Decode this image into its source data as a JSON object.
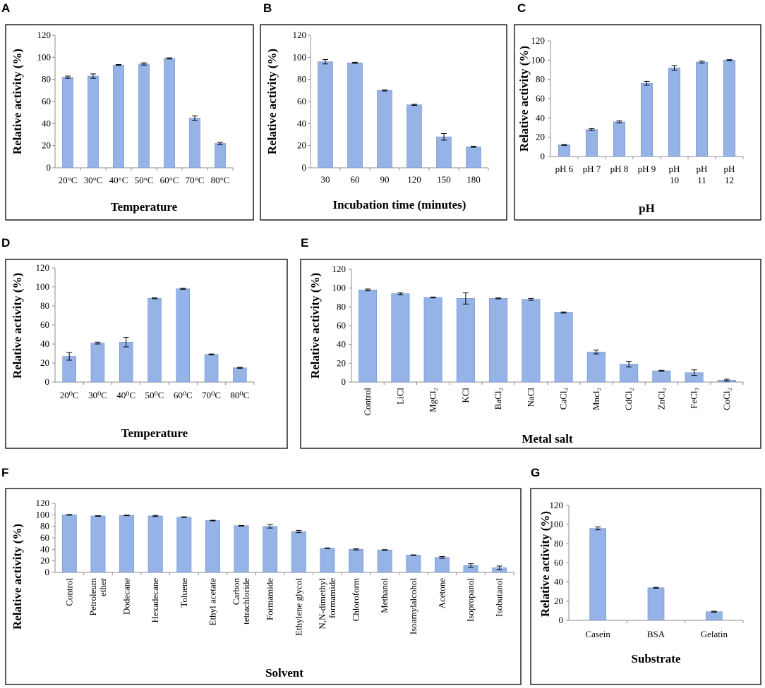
{
  "colors": {
    "bar": "#95b3e7",
    "bar_stroke": "#6f8fc9",
    "axis": "#8c8c8c",
    "error_bar": "#000000"
  },
  "chart_data": [
    {
      "id": "A",
      "panel": "A",
      "type": "bar",
      "title": "",
      "xlabel": "Temperature",
      "ylabel": "Relative activity  (%)",
      "ylim": [
        0,
        120
      ],
      "ytick_step": 20,
      "categories": [
        "20°C",
        "30°C",
        "40°C",
        "50°C",
        "60°C",
        "70°C",
        "80°C"
      ],
      "values": [
        82,
        83,
        93,
        94,
        99,
        45,
        22
      ],
      "errors": [
        1,
        2,
        0.5,
        1,
        0.5,
        2,
        1
      ]
    },
    {
      "id": "B",
      "panel": "B",
      "type": "bar",
      "title": "",
      "xlabel": "Incubation  time (minutes)",
      "ylabel": "Relative activity  (%)",
      "ylim": [
        0,
        120
      ],
      "ytick_step": 20,
      "categories": [
        "30",
        "60",
        "90",
        "120",
        "150",
        "180"
      ],
      "values": [
        96,
        95,
        70,
        57,
        28,
        19
      ],
      "errors": [
        2,
        0.5,
        0.5,
        0.5,
        3,
        0.5
      ]
    },
    {
      "id": "C",
      "panel": "C",
      "type": "bar",
      "title": "",
      "xlabel": "pH",
      "ylabel": "Relative activity  (%)",
      "ylim": [
        0,
        120
      ],
      "ytick_step": 20,
      "categories": [
        "pH 6",
        "pH 7",
        "pH 8",
        "pH 9",
        "pH 10",
        "pH 11",
        "pH 12"
      ],
      "category_lines": [
        [
          "pH 6"
        ],
        [
          "pH 7"
        ],
        [
          "pH 8"
        ],
        [
          "pH 9"
        ],
        [
          "pH",
          "10"
        ],
        [
          "pH",
          "11"
        ],
        [
          "pH",
          "12"
        ]
      ],
      "values": [
        12,
        28,
        36,
        76,
        92,
        98,
        100
      ],
      "errors": [
        0.5,
        1,
        1,
        2,
        2.5,
        1,
        0.5
      ]
    },
    {
      "id": "D",
      "panel": "D",
      "type": "bar",
      "title": "",
      "xlabel": "Temperature",
      "ylabel": "Relative activity  (%)",
      "ylim": [
        0,
        120
      ],
      "ytick_step": 20,
      "categories": [
        "20⁰C",
        "30⁰C",
        "40⁰C",
        "50⁰C",
        "60⁰C",
        "70⁰C",
        "80⁰C"
      ],
      "values": [
        27,
        41,
        42,
        88,
        98,
        29,
        15
      ],
      "errors": [
        4,
        1,
        5,
        0.5,
        0.5,
        0.5,
        0.5
      ]
    },
    {
      "id": "E",
      "panel": "E",
      "type": "bar",
      "title": "",
      "xlabel": "Metal salt",
      "ylabel": "Relative activity  (%)",
      "ylim": [
        0,
        120
      ],
      "ytick_step": 20,
      "categories": [
        "Control",
        "LiCl",
        "MgCl₂",
        "KCl",
        "BaCl₂",
        "NaCl",
        "CaCl₂",
        "Mncl₂",
        "CdCl₂",
        "ZnCl₂",
        "FeCl₃",
        "CoCl₂"
      ],
      "values": [
        98,
        94,
        90,
        89,
        89,
        88,
        74,
        32,
        19,
        12,
        10,
        2
      ],
      "errors": [
        1,
        1,
        0.5,
        6,
        0.5,
        1,
        0.5,
        2,
        3,
        0.5,
        3,
        1
      ]
    },
    {
      "id": "F",
      "panel": "F",
      "type": "bar",
      "title": "",
      "xlabel": "Solvent",
      "ylabel": "Relative activity  (%)",
      "ylim": [
        0,
        120
      ],
      "ytick_step": 20,
      "categories": [
        "Control",
        "Petroleum ether",
        "Dodecane",
        "Hexadecane",
        "Toluene",
        "Ethyl acetate",
        "Carbon tetrachloride",
        "Formamide",
        "Ethylene glycol",
        "N,N-dimethyl formamide",
        "Chloroform",
        "Methanol",
        "Isoamylalcohol",
        "Acetone",
        "Isopropanol",
        "Isobutanol"
      ],
      "category_lines": [
        [
          "Control"
        ],
        [
          "Petroleum",
          "ether"
        ],
        [
          "Dodecane"
        ],
        [
          "Hexadecane"
        ],
        [
          "Toluene"
        ],
        [
          "Ethyl acetate"
        ],
        [
          "Carbon",
          "tetrachloride"
        ],
        [
          "Formamide"
        ],
        [
          "Ethylene glycol"
        ],
        [
          "N,N-dimethyl",
          "formamide"
        ],
        [
          "Chloroform"
        ],
        [
          "Methanol"
        ],
        [
          "Isoamylalcohol"
        ],
        [
          "Acetone"
        ],
        [
          "Isopropanol"
        ],
        [
          "Isobutanol"
        ]
      ],
      "values": [
        100,
        98,
        99,
        98,
        96,
        90,
        81,
        80,
        71,
        42,
        40,
        39,
        30,
        26,
        12,
        8
      ],
      "errors": [
        0.5,
        0.5,
        0.5,
        1,
        0.5,
        0.5,
        0.5,
        3,
        2,
        0.5,
        1,
        0.5,
        0.5,
        1.5,
        3,
        3
      ]
    },
    {
      "id": "G",
      "panel": "G",
      "type": "bar",
      "title": "",
      "xlabel": "Substrate",
      "ylabel": "Relative activity  (%)",
      "ylim": [
        0,
        120
      ],
      "ytick_step": 20,
      "categories": [
        "Casein",
        "BSA",
        "Gelatin"
      ],
      "values": [
        96,
        34,
        9
      ],
      "errors": [
        1.5,
        0.5,
        0.5
      ]
    }
  ]
}
